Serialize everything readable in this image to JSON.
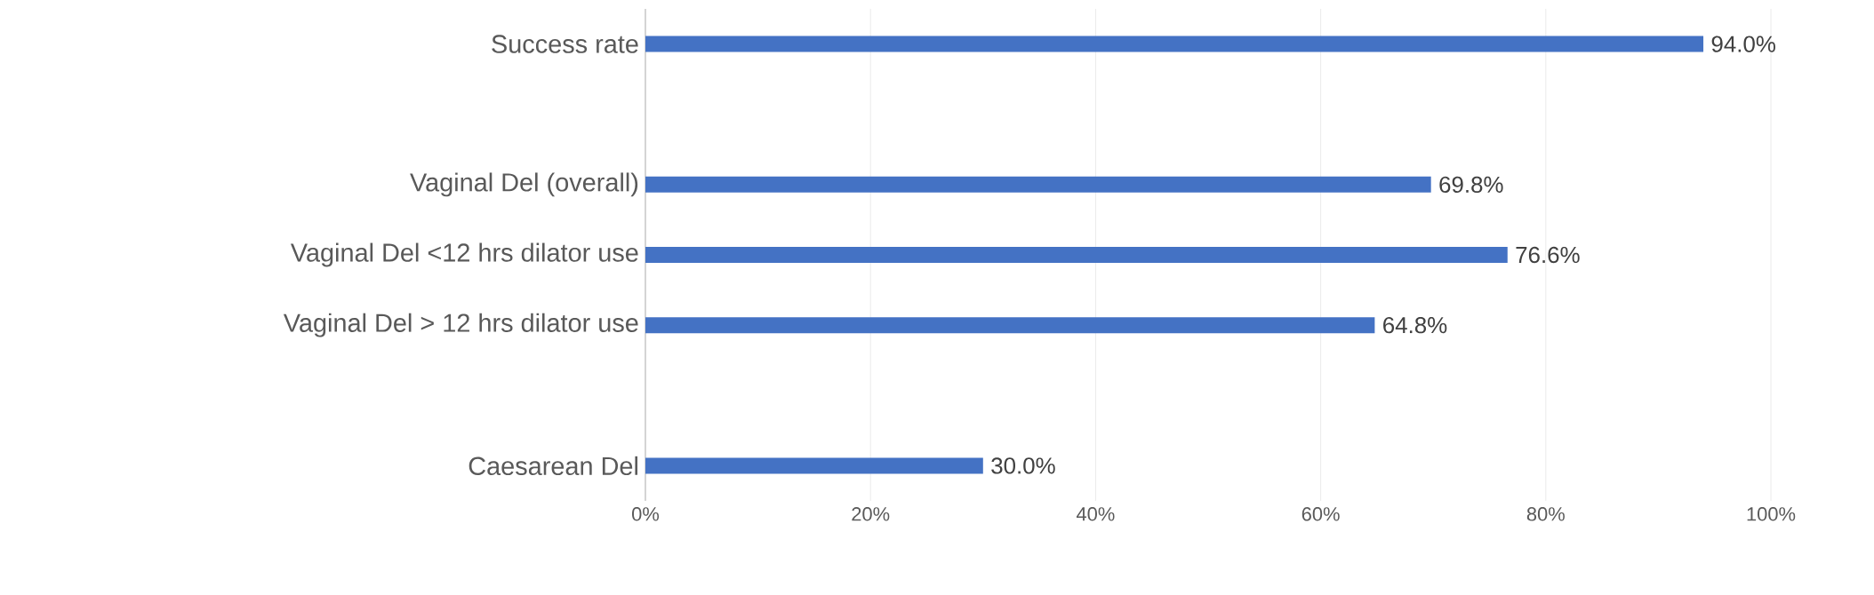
{
  "chart_data": {
    "type": "bar",
    "orientation": "horizontal",
    "categories": [
      "Success rate",
      null,
      "Vaginal Del (overall)",
      "Vaginal Del <12 hrs dilator use",
      "Vaginal Del > 12 hrs dilator use",
      null,
      "Caesarean Del"
    ],
    "values": [
      94.0,
      null,
      69.8,
      76.6,
      64.8,
      null,
      30.0
    ],
    "value_labels": [
      "94.0%",
      null,
      "69.8%",
      "76.6%",
      "64.8%",
      null,
      "30.0%"
    ],
    "color": "#4472c4",
    "xlim": [
      0,
      100
    ],
    "xticks": [
      {
        "value": 0,
        "label": "0%"
      },
      {
        "value": 20,
        "label": "20%"
      },
      {
        "value": 40,
        "label": "40%"
      },
      {
        "value": 60,
        "label": "60%"
      },
      {
        "value": 80,
        "label": "80%"
      },
      {
        "value": 100,
        "label": "100%"
      }
    ],
    "grid": "x"
  }
}
